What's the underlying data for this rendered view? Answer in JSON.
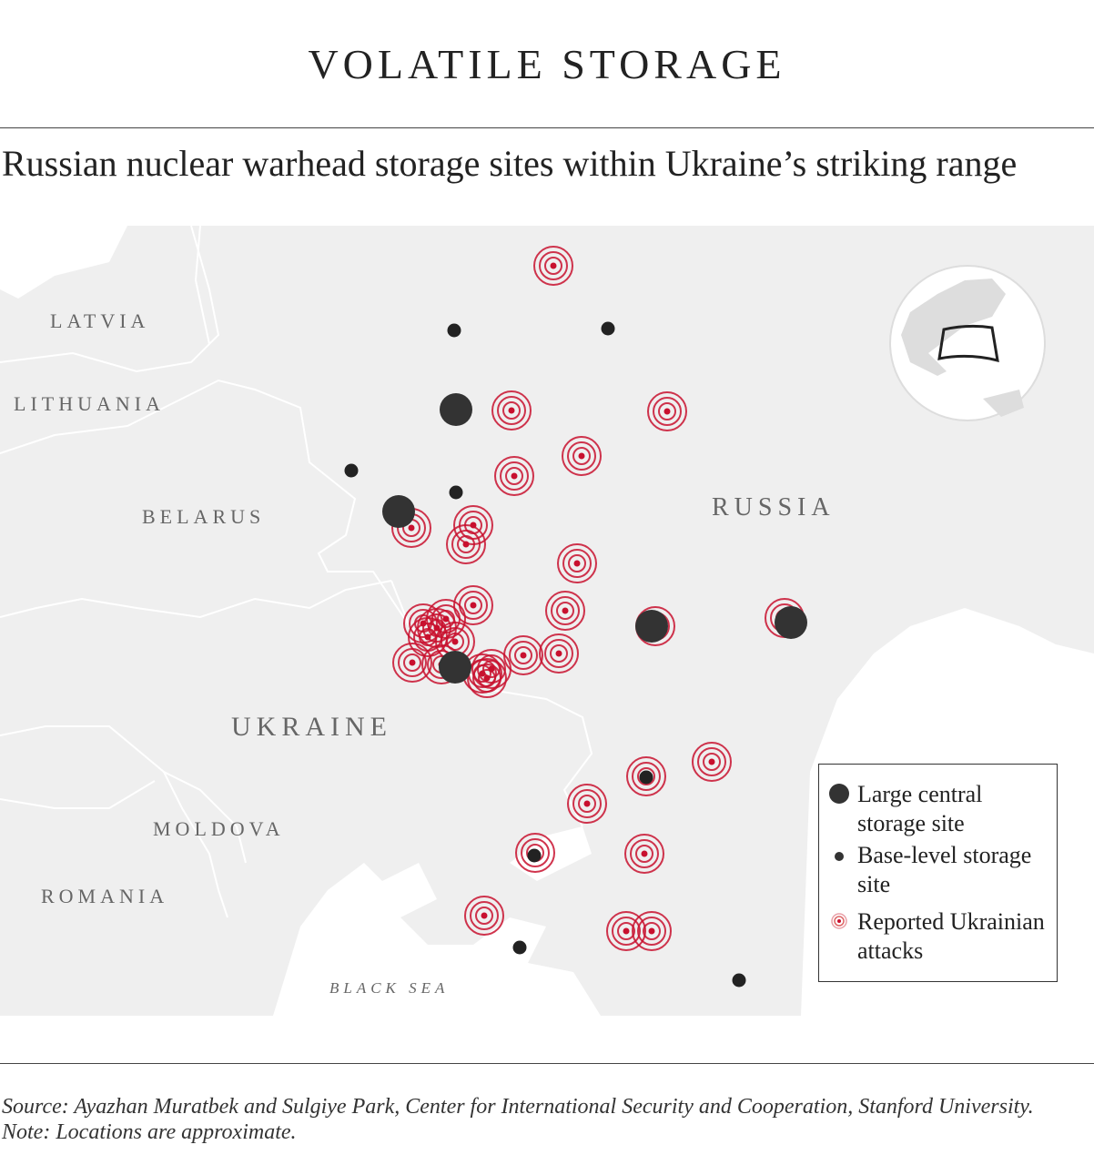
{
  "header": {
    "title": "VOLATILE STORAGE",
    "subtitle": "Russian nuclear warhead storage sites within Ukraine’s striking range"
  },
  "map": {
    "labels": {
      "latvia": "LATVIA",
      "lithuania": "LITHUANIA",
      "belarus": "BELARUS",
      "russia": "RUSSIA",
      "ukraine": "UKRAINE",
      "moldova": "MOLDOVA",
      "romania": "ROMANIA",
      "black_sea": "BLACK SEA"
    },
    "colors": {
      "land": "#efefef",
      "sea": "#ffffff",
      "border": "#ffffff",
      "large_site": "#333333",
      "base_site": "#222222",
      "attack": "#c8102e"
    },
    "inset": "locator-globe"
  },
  "legend": {
    "large": "Large central storage site",
    "base": "Base-level storage site",
    "attack": "Reported Ukrainian attacks"
  },
  "footer": {
    "source": "Source: Ayazhan Muratbek and Sulgiye Park, Center for International Security and Cooperation, Stanford University. Note: Locations are approximate."
  }
}
